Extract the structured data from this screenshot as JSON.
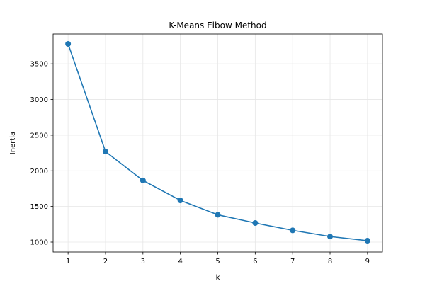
{
  "chart_data": {
    "type": "line",
    "title": "K-Means Elbow Method",
    "xlabel": "k",
    "ylabel": "Inertia",
    "x": [
      1,
      2,
      3,
      4,
      5,
      6,
      7,
      8,
      9
    ],
    "series": [
      {
        "values": [
          3780,
          2270,
          1865,
          1585,
          1383,
          1268,
          1165,
          1078,
          1020
        ],
        "color": "#1f77b4",
        "marker": "circle"
      }
    ],
    "xlim": [
      0.6,
      9.4
    ],
    "ylim": [
      861,
      3919
    ],
    "xticks": [
      1,
      2,
      3,
      4,
      5,
      6,
      7,
      8,
      9
    ],
    "yticks": [
      1000,
      1500,
      2000,
      2500,
      3000,
      3500
    ],
    "grid": true,
    "grid_color": "#e6e6e6",
    "axis_color": "#000000"
  }
}
